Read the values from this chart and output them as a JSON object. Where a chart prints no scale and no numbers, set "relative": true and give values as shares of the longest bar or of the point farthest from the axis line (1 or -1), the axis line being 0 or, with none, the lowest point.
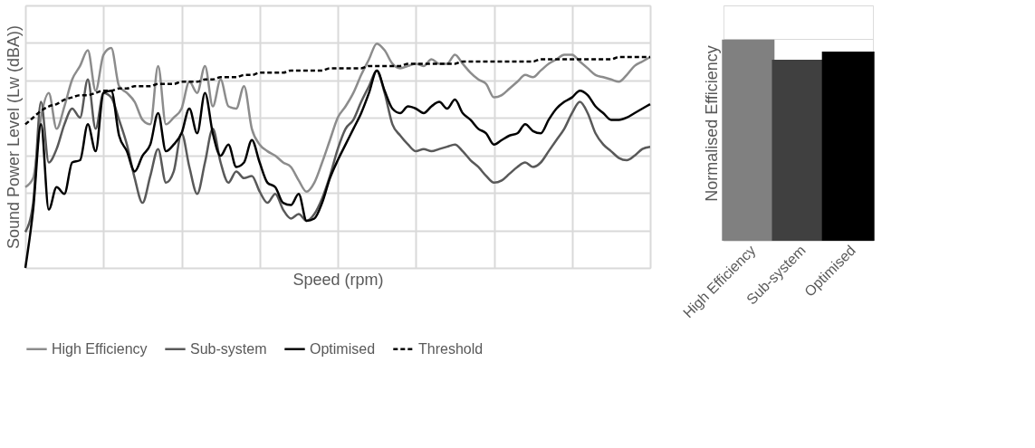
{
  "chart_data": [
    {
      "type": "line",
      "xlabel": "Speed (rpm)",
      "ylabel": "Sound Power Level (Lw (dBA))",
      "relative": true,
      "grid": true,
      "legend": "bottom",
      "categories": [
        null,
        null,
        null,
        null,
        null,
        null,
        null,
        null,
        null,
        null,
        null,
        null,
        null,
        null,
        null,
        null,
        null,
        null,
        null,
        null,
        null,
        null,
        null,
        null,
        null,
        null,
        null,
        null,
        null,
        null,
        null,
        null,
        null,
        null,
        null,
        null,
        null,
        null,
        null,
        null,
        null,
        null,
        null,
        null,
        null,
        null,
        null,
        null,
        null,
        null,
        null,
        null,
        null,
        null,
        null,
        null,
        null,
        null,
        null,
        null,
        null,
        null,
        null,
        null,
        null,
        null,
        null,
        null,
        null,
        null,
        null,
        null,
        null,
        null,
        null,
        null,
        null,
        null,
        null,
        null,
        null
      ],
      "series": [
        {
          "name": "High Efficiency",
          "color": "#8c8c8c",
          "line_style": "solid",
          "values": [
            0.36,
            0.4,
            0.67,
            0.78,
            0.62,
            0.72,
            0.84,
            0.9,
            0.97,
            0.79,
            0.95,
            0.98,
            0.81,
            0.78,
            0.74,
            0.66,
            0.64,
            0.9,
            0.64,
            0.67,
            0.71,
            0.83,
            0.78,
            0.9,
            0.72,
            0.84,
            0.72,
            0.71,
            0.81,
            0.62,
            0.55,
            0.52,
            0.5,
            0.47,
            0.45,
            0.39,
            0.34,
            0.38,
            0.47,
            0.57,
            0.67,
            0.72,
            0.78,
            0.86,
            0.93,
            1.0,
            0.97,
            0.91,
            0.89,
            0.9,
            0.91,
            0.9,
            0.93,
            0.91,
            0.91,
            0.95,
            0.91,
            0.87,
            0.84,
            0.82,
            0.76,
            0.77,
            0.8,
            0.83,
            0.86,
            0.85,
            0.88,
            0.91,
            0.93,
            0.95,
            0.95,
            0.92,
            0.89,
            0.86,
            0.85,
            0.84,
            0.83,
            0.86,
            0.9,
            0.92,
            0.94
          ]
        },
        {
          "name": "Sub-system",
          "color": "#595959",
          "line_style": "solid",
          "values": [
            0.16,
            0.29,
            0.74,
            0.47,
            0.53,
            0.64,
            0.71,
            0.67,
            0.84,
            0.62,
            0.78,
            0.76,
            0.66,
            0.55,
            0.4,
            0.29,
            0.41,
            0.53,
            0.38,
            0.43,
            0.6,
            0.45,
            0.33,
            0.47,
            0.62,
            0.47,
            0.38,
            0.43,
            0.4,
            0.41,
            0.34,
            0.29,
            0.33,
            0.26,
            0.22,
            0.24,
            0.21,
            0.24,
            0.31,
            0.41,
            0.53,
            0.62,
            0.66,
            0.74,
            0.81,
            0.88,
            0.78,
            0.64,
            0.59,
            0.55,
            0.52,
            0.53,
            0.52,
            0.53,
            0.54,
            0.55,
            0.52,
            0.48,
            0.45,
            0.41,
            0.38,
            0.39,
            0.42,
            0.45,
            0.47,
            0.45,
            0.47,
            0.52,
            0.57,
            0.62,
            0.69,
            0.74,
            0.69,
            0.6,
            0.55,
            0.52,
            0.49,
            0.48,
            0.5,
            0.53,
            0.54
          ]
        },
        {
          "name": "Optimised",
          "color": "#000000",
          "line_style": "solid",
          "values": [
            0.0,
            0.26,
            0.64,
            0.26,
            0.36,
            0.33,
            0.47,
            0.48,
            0.64,
            0.52,
            0.78,
            0.79,
            0.59,
            0.52,
            0.43,
            0.5,
            0.55,
            0.69,
            0.52,
            0.55,
            0.6,
            0.71,
            0.6,
            0.78,
            0.6,
            0.5,
            0.55,
            0.45,
            0.47,
            0.57,
            0.47,
            0.38,
            0.36,
            0.29,
            0.28,
            0.33,
            0.21,
            0.22,
            0.29,
            0.4,
            0.48,
            0.55,
            0.62,
            0.69,
            0.78,
            0.88,
            0.79,
            0.71,
            0.69,
            0.72,
            0.71,
            0.69,
            0.72,
            0.74,
            0.71,
            0.75,
            0.69,
            0.66,
            0.62,
            0.6,
            0.55,
            0.57,
            0.59,
            0.6,
            0.64,
            0.61,
            0.6,
            0.66,
            0.71,
            0.74,
            0.76,
            0.79,
            0.77,
            0.72,
            0.69,
            0.66,
            0.66,
            0.67,
            0.69,
            0.71,
            0.73
          ]
        },
        {
          "name": "Threshold",
          "color": "#000000",
          "line_style": "dashed",
          "values": [
            0.64,
            0.67,
            0.7,
            0.72,
            0.73,
            0.75,
            0.76,
            0.77,
            0.77,
            0.78,
            0.79,
            0.79,
            0.8,
            0.8,
            0.81,
            0.81,
            0.81,
            0.82,
            0.82,
            0.82,
            0.83,
            0.83,
            0.83,
            0.84,
            0.84,
            0.85,
            0.85,
            0.85,
            0.86,
            0.86,
            0.87,
            0.87,
            0.87,
            0.87,
            0.88,
            0.88,
            0.88,
            0.88,
            0.88,
            0.89,
            0.89,
            0.89,
            0.89,
            0.89,
            0.9,
            0.9,
            0.9,
            0.9,
            0.9,
            0.91,
            0.91,
            0.91,
            0.91,
            0.91,
            0.91,
            0.91,
            0.92,
            0.92,
            0.92,
            0.92,
            0.92,
            0.92,
            0.92,
            0.92,
            0.92,
            0.92,
            0.93,
            0.93,
            0.93,
            0.93,
            0.93,
            0.93,
            0.93,
            0.93,
            0.93,
            0.93,
            0.94,
            0.94,
            0.94,
            0.94,
            0.94
          ]
        }
      ]
    },
    {
      "type": "bar",
      "ylabel": "Normalised Efficiency",
      "relative": true,
      "grid": "y",
      "categories": [
        "High Efficiency",
        "Sub-system",
        "Optimised"
      ],
      "values": [
        1.0,
        0.9,
        0.94
      ],
      "colors": [
        "#808080",
        "#404040",
        "#000000"
      ]
    }
  ]
}
